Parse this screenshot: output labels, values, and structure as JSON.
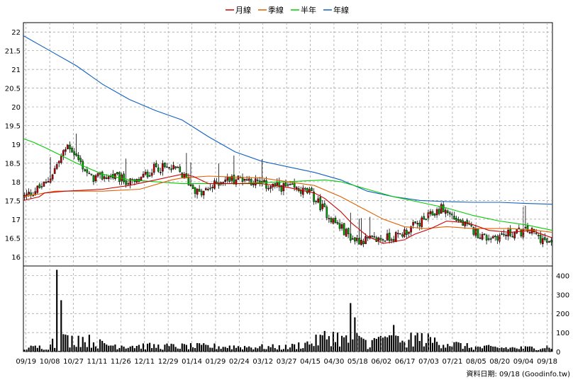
{
  "chart_data": [
    {
      "type": "candlestick",
      "legend": [
        {
          "label": "月線",
          "color": "#cc0000"
        },
        {
          "label": "季線",
          "color": "#e06000"
        },
        {
          "label": "半年",
          "color": "#00cc00"
        },
        {
          "label": "年線",
          "color": "#1060c0"
        }
      ],
      "ylim": [
        15.75,
        22.25
      ],
      "y_ticks": [
        "16",
        "16.5",
        "17",
        "17.5",
        "18",
        "18.5",
        "19",
        "19.5",
        "20",
        "20.5",
        "21",
        "21.5",
        "22"
      ],
      "up_color": "#cc0000",
      "down_color": "#00aa00",
      "ohlc_keyframes": [
        {
          "x": "09/19",
          "close": 17.6
        },
        {
          "x": "09/25",
          "close": 17.95
        },
        {
          "x": "10/03",
          "close": 19.0
        },
        {
          "x": "10/08",
          "close": 18.1
        },
        {
          "x": "10/27",
          "close": 18.15
        },
        {
          "x": "11/11",
          "close": 17.95
        },
        {
          "x": "11/26",
          "close": 18.4
        },
        {
          "x": "12/11",
          "close": 18.3
        },
        {
          "x": "12/29",
          "close": 17.65
        },
        {
          "x": "01/14",
          "close": 18.05
        },
        {
          "x": "01/29",
          "close": 18.1
        },
        {
          "x": "02/24",
          "close": 17.9
        },
        {
          "x": "03/12",
          "close": 17.85
        },
        {
          "x": "03/27",
          "close": 17.7
        },
        {
          "x": "04/15",
          "close": 17.0
        },
        {
          "x": "04/30",
          "close": 16.45
        },
        {
          "x": "05/18",
          "close": 16.45
        },
        {
          "x": "06/02",
          "close": 16.55
        },
        {
          "x": "06/17",
          "close": 16.9
        },
        {
          "x": "07/03",
          "close": 17.3
        },
        {
          "x": "07/21",
          "close": 16.85
        },
        {
          "x": "08/05",
          "close": 16.5
        },
        {
          "x": "08/20",
          "close": 16.6
        },
        {
          "x": "09/04",
          "close": 16.7
        },
        {
          "x": "09/18",
          "close": 16.3
        }
      ],
      "ma_month": [
        [
          0,
          17.5
        ],
        [
          0.03,
          17.6
        ],
        [
          0.04,
          17.7
        ],
        [
          0.08,
          17.75
        ],
        [
          0.15,
          17.8
        ],
        [
          0.2,
          17.9
        ],
        [
          0.25,
          18.05
        ],
        [
          0.3,
          18.2
        ],
        [
          0.32,
          18.15
        ],
        [
          0.35,
          17.95
        ],
        [
          0.4,
          17.95
        ],
        [
          0.45,
          17.95
        ],
        [
          0.5,
          17.85
        ],
        [
          0.55,
          17.7
        ],
        [
          0.57,
          17.55
        ],
        [
          0.6,
          17.2
        ],
        [
          0.62,
          16.9
        ],
        [
          0.65,
          16.55
        ],
        [
          0.68,
          16.35
        ],
        [
          0.72,
          16.45
        ],
        [
          0.74,
          16.6
        ],
        [
          0.77,
          16.75
        ],
        [
          0.8,
          16.95
        ],
        [
          0.84,
          16.9
        ],
        [
          0.88,
          16.7
        ],
        [
          0.92,
          16.65
        ],
        [
          0.96,
          16.7
        ],
        [
          1,
          16.5
        ]
      ],
      "ma_quarter": [
        [
          0,
          17.6
        ],
        [
          0.06,
          17.75
        ],
        [
          0.15,
          17.75
        ],
        [
          0.22,
          17.8
        ],
        [
          0.28,
          18.05
        ],
        [
          0.3,
          18.1
        ],
        [
          0.35,
          18.15
        ],
        [
          0.45,
          18.1
        ],
        [
          0.5,
          18.0
        ],
        [
          0.55,
          17.9
        ],
        [
          0.6,
          17.6
        ],
        [
          0.64,
          17.3
        ],
        [
          0.68,
          17.0
        ],
        [
          0.72,
          16.8
        ],
        [
          0.76,
          16.75
        ],
        [
          0.8,
          16.8
        ],
        [
          0.85,
          16.75
        ],
        [
          0.92,
          16.75
        ],
        [
          0.97,
          16.7
        ],
        [
          1,
          16.65
        ]
      ],
      "ma_half": [
        [
          0,
          19.15
        ],
        [
          0.02,
          19.05
        ],
        [
          0.05,
          18.85
        ],
        [
          0.1,
          18.5
        ],
        [
          0.15,
          18.2
        ],
        [
          0.2,
          18.05
        ],
        [
          0.3,
          17.95
        ],
        [
          0.4,
          17.95
        ],
        [
          0.5,
          18.0
        ],
        [
          0.57,
          18.05
        ],
        [
          0.6,
          18.0
        ],
        [
          0.65,
          17.8
        ],
        [
          0.7,
          17.6
        ],
        [
          0.75,
          17.45
        ],
        [
          0.8,
          17.3
        ],
        [
          0.85,
          17.1
        ],
        [
          0.9,
          16.95
        ],
        [
          0.95,
          16.85
        ],
        [
          1,
          16.7
        ]
      ],
      "ma_year": [
        [
          0,
          21.9
        ],
        [
          0.05,
          21.5
        ],
        [
          0.1,
          21.1
        ],
        [
          0.15,
          20.6
        ],
        [
          0.2,
          20.2
        ],
        [
          0.25,
          19.9
        ],
        [
          0.3,
          19.65
        ],
        [
          0.35,
          19.2
        ],
        [
          0.4,
          18.8
        ],
        [
          0.45,
          18.55
        ],
        [
          0.5,
          18.4
        ],
        [
          0.55,
          18.25
        ],
        [
          0.6,
          18.05
        ],
        [
          0.65,
          17.75
        ],
        [
          0.7,
          17.6
        ],
        [
          0.75,
          17.5
        ],
        [
          0.8,
          17.47
        ],
        [
          0.85,
          17.45
        ],
        [
          0.9,
          17.45
        ],
        [
          0.95,
          17.42
        ],
        [
          1,
          17.4
        ]
      ],
      "volume_color": "#ff0000"
    },
    {
      "type": "bar",
      "ylim": [
        0,
        450
      ],
      "y_ticks": [
        "0",
        "100",
        "200",
        "300",
        "400"
      ],
      "volume_keyframes": [
        {
          "pos": 0.0,
          "v": 20
        },
        {
          "pos": 0.05,
          "v": 30
        },
        {
          "pos": 0.062,
          "v": 430
        },
        {
          "pos": 0.07,
          "v": 270
        },
        {
          "pos": 0.085,
          "v": 60
        },
        {
          "pos": 0.1,
          "v": 80
        },
        {
          "pos": 0.15,
          "v": 40
        },
        {
          "pos": 0.25,
          "v": 30
        },
        {
          "pos": 0.35,
          "v": 30
        },
        {
          "pos": 0.5,
          "v": 25
        },
        {
          "pos": 0.55,
          "v": 55
        },
        {
          "pos": 0.58,
          "v": 95
        },
        {
          "pos": 0.615,
          "v": 60
        },
        {
          "pos": 0.62,
          "v": 255
        },
        {
          "pos": 0.625,
          "v": 180
        },
        {
          "pos": 0.65,
          "v": 40
        },
        {
          "pos": 0.68,
          "v": 80
        },
        {
          "pos": 0.7,
          "v": 140
        },
        {
          "pos": 0.72,
          "v": 90
        },
        {
          "pos": 0.8,
          "v": 50
        },
        {
          "pos": 0.85,
          "v": 25
        },
        {
          "pos": 0.95,
          "v": 20
        },
        {
          "pos": 1.0,
          "v": 30
        }
      ]
    }
  ],
  "x_ticks": [
    "09/19",
    "10/08",
    "10/27",
    "11/11",
    "11/26",
    "12/11",
    "12/29",
    "01/14",
    "01/29",
    "02/24",
    "03/12",
    "03/27",
    "04/15",
    "04/30",
    "05/18",
    "06/02",
    "06/17",
    "07/03",
    "07/21",
    "08/05",
    "08/20",
    "09/04",
    "09/18"
  ],
  "source": "資料日期: 09/18 (Goodinfo.tw)"
}
